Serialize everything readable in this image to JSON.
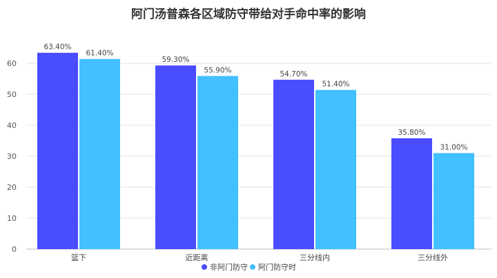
{
  "chart_data": {
    "type": "bar",
    "title": "阿门汤普森各区域防守带给对手命中率的影响",
    "categories": [
      "篮下",
      "近距离",
      "三分线内",
      "三分线外"
    ],
    "series": [
      {
        "name": "非阿门防守",
        "values": [
          63.4,
          59.3,
          54.7,
          35.8
        ],
        "labels": [
          "63.40%",
          "59.30%",
          "54.70%",
          "35.80%"
        ],
        "color": "#4a4cff"
      },
      {
        "name": "阿门防守时",
        "values": [
          61.4,
          55.9,
          51.4,
          31.0
        ],
        "labels": [
          "61.40%",
          "55.90%",
          "51.40%",
          "31.00%"
        ],
        "color": "#42c0ff"
      }
    ],
    "ylim": [
      0,
      60
    ],
    "yticks": [
      0,
      10,
      20,
      30,
      40,
      50,
      60
    ],
    "grid": true,
    "legend": "bottom-center",
    "xlabel": "",
    "ylabel": ""
  }
}
